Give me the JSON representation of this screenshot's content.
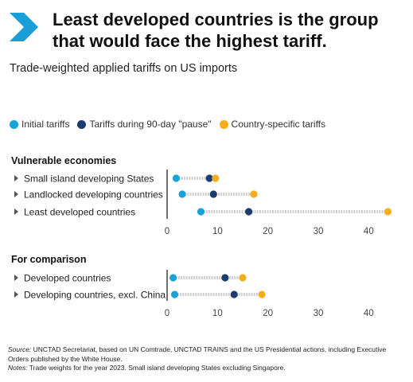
{
  "title": "Least developed countries is the group that would face the highest tariff.",
  "subtitle": "Trade-weighted applied tariffs on US imports",
  "colors": {
    "initial": "#1aa3d9",
    "pause": "#1a3c6e",
    "country_specific": "#f6ad1b",
    "chevron": "#1a9ed8",
    "track": "#cfcfcf"
  },
  "legend": [
    {
      "key": "initial",
      "label": "Initial tariffs"
    },
    {
      "key": "pause",
      "label": "Tariffs during 90-day \"pause\""
    },
    {
      "key": "country_specific",
      "label": "Country-specific tariffs"
    }
  ],
  "chart_data": [
    {
      "type": "dot-range",
      "group_title": "Vulnerable economies",
      "xlim": [
        0,
        45
      ],
      "ticks": [
        0,
        10,
        20,
        30,
        40
      ],
      "categories": [
        "Small island developing States",
        "Landlocked developing countries",
        "Least developed countries"
      ],
      "series": [
        {
          "name": "Initial tariffs",
          "key": "initial",
          "values": [
            1.8,
            3,
            6.7
          ]
        },
        {
          "name": "Tariffs during 90-day \"pause\"",
          "key": "pause",
          "values": [
            8.4,
            9.2,
            16.2
          ]
        },
        {
          "name": "Country-specific tariffs",
          "key": "country_specific",
          "values": [
            9.6,
            17.2,
            43.8
          ]
        }
      ]
    },
    {
      "type": "dot-range",
      "group_title": "For comparison",
      "xlim": [
        0,
        45
      ],
      "ticks": [
        0,
        10,
        20,
        30,
        40
      ],
      "categories": [
        "Developed countries",
        "Developing countries, excl. China"
      ],
      "series": [
        {
          "name": "Initial tariffs",
          "key": "initial",
          "values": [
            1.2,
            1.5
          ]
        },
        {
          "name": "Tariffs during 90-day \"pause\"",
          "key": "pause",
          "values": [
            11.5,
            13.3
          ]
        },
        {
          "name": "Country-specific tariffs",
          "key": "country_specific",
          "values": [
            15,
            18.8
          ]
        }
      ]
    }
  ],
  "footer": {
    "source_label": "Source:",
    "source_text": " UNCTAD Secretariat, based on UN Comtrade, UNCTAD TRAINS and the US Presidential actions, including Executive Orders published by the White House.",
    "notes_label": "Notes:",
    "notes_text": " Trade weights for the year 2023. Small island developing States excluding Singapore."
  }
}
